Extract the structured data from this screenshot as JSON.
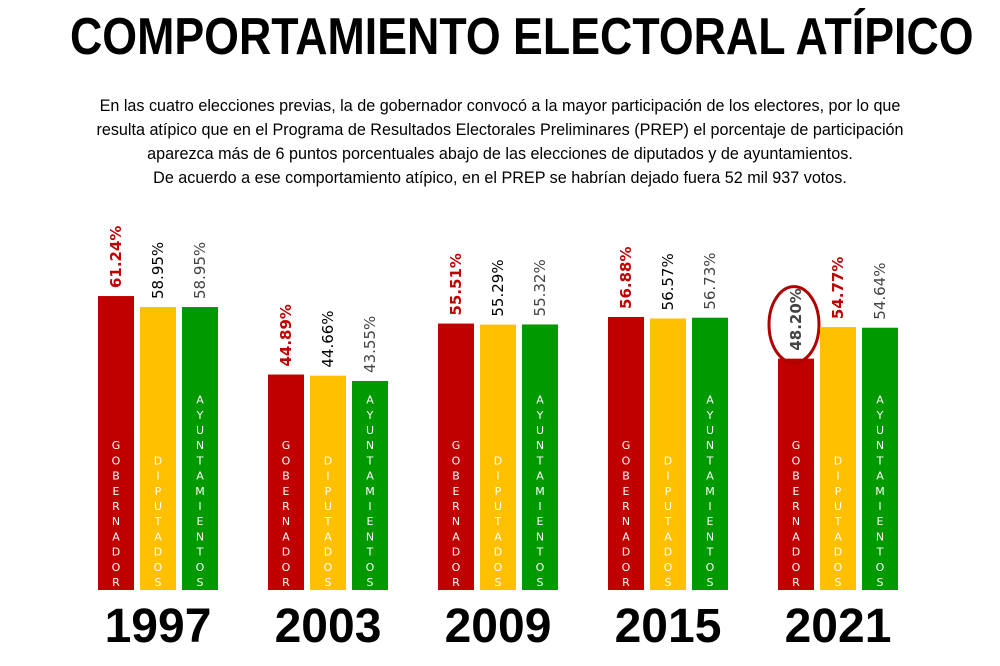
{
  "header": {
    "title": "COMPORTAMIENTO ELECTORAL ATÍPICO",
    "intro_lines": [
      "En las cuatro elecciones previas, la de gobernador convocó a la mayor participación de los electores, por lo que",
      "resulta atípico que en el Programa de Resultados Electorales Preliminares (PREP) el porcentaje de participación",
      "aparezca más de 6 puntos porcentuales abajo de las elecciones de diputados y de ayuntamientos.",
      "De acuerdo a ese comportamiento atípico, en el PREP se habrían dejado fuera 52 mil 937 votos."
    ]
  },
  "chart_data": {
    "type": "bar",
    "categories": [
      "1997",
      "2003",
      "2009",
      "2015",
      "2021"
    ],
    "series": [
      {
        "name": "GOBERNADOR",
        "color": "#c00000",
        "label_color": "#c00000",
        "values": [
          61.24,
          44.89,
          55.51,
          56.88,
          48.2
        ],
        "labels": [
          "61.24%",
          "44.89%",
          "55.51%",
          "56.88%",
          "48.20%"
        ]
      },
      {
        "name": "DIPUTADOS",
        "color": "#ffc000",
        "label_color": "#000000",
        "values": [
          58.95,
          44.66,
          55.29,
          56.57,
          54.77
        ],
        "labels": [
          "58.95%",
          "44.66%",
          "55.29%",
          "56.57%",
          "54.77%"
        ]
      },
      {
        "name": "AYUNTAMIENTOS",
        "color": "#009900",
        "label_color": "#444444",
        "values": [
          58.95,
          43.55,
          55.32,
          56.73,
          54.64
        ],
        "labels": [
          "58.95%",
          "43.55%",
          "55.32%",
          "56.73%",
          "54.64%"
        ]
      }
    ],
    "highlight": {
      "category": "2021",
      "series": "GOBERNADOR",
      "color": "#b00000"
    },
    "label_overrides": {
      "2021": [
        "#444444",
        "#c00000",
        "#444444"
      ]
    },
    "ylim": [
      0,
      100
    ],
    "xlabel": "",
    "ylabel": "",
    "grid": false,
    "legend": "none"
  }
}
